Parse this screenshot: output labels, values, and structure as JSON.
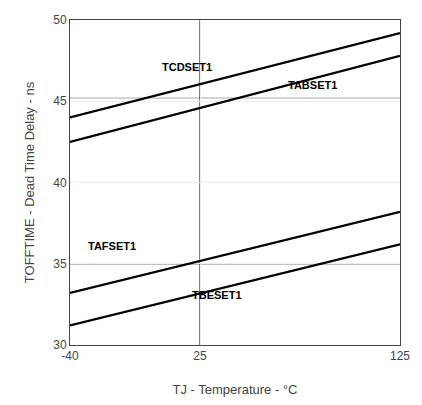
{
  "chart_data": {
    "type": "line",
    "x": [
      -40,
      125
    ],
    "series": [
      {
        "color": "#000000",
        "values": [
          44.0,
          49.2
        ]
      },
      {
        "color": "#000000",
        "values": [
          42.5,
          47.8
        ]
      },
      {
        "color": "#000000",
        "values": [
          33.2,
          38.2
        ]
      },
      {
        "color": "#000000",
        "values": [
          31.2,
          36.2
        ]
      }
    ],
    "hlines": [
      {
        "y": 45.2,
        "color": "#aaaaaa"
      },
      {
        "y": 35.0,
        "color": "#000000"
      }
    ],
    "vlines": [
      {
        "x": 25,
        "color": "#000000"
      }
    ],
    "annotations": [
      {
        "text": "TCDSET1",
        "x": 5,
        "y": 46.6
      },
      {
        "text": "TABSET1",
        "x": 68,
        "y": 45.5
      },
      {
        "text": "TAFSET1",
        "x": -32,
        "y": 35.6
      },
      {
        "text": "TBESET1",
        "x": 20,
        "y": 32.6
      }
    ],
    "xlabel": "TJ - Temperature - °C",
    "ylabel": "TOFFTIME - Dead Time Delay - ns",
    "xlim": [
      -40,
      125
    ],
    "ylim": [
      30,
      50
    ],
    "xticks": [
      -40,
      25,
      125
    ],
    "yticks": [
      30,
      35,
      40,
      45,
      50
    ],
    "grid": true
  }
}
